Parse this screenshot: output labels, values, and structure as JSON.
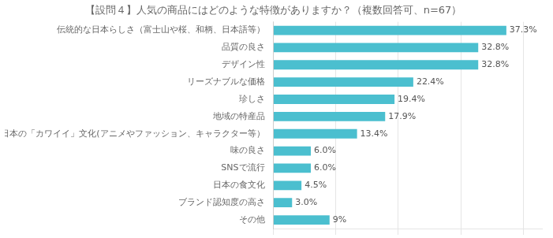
{
  "chart_data": {
    "type": "bar",
    "orientation": "horizontal",
    "title": "【設問４】人気の商品にはどのような特徴がありますか？（複数回答可、n=67）",
    "categories": [
      "その他",
      "ブランド認知度の高さ",
      "日本の食文化",
      "SNSで流行",
      "味の良さ",
      "日本の「カワイイ」文化(アニメやファッション、キャラクター等）",
      "地域の特産品",
      "珍しさ",
      "リーズナブルな価格",
      "デザイン性",
      "品質の良さ",
      "伝統的な日本らしさ（富士山や桜、和柄、日本語等）"
    ],
    "values": [
      9.0,
      3.0,
      4.5,
      6.0,
      6.0,
      13.4,
      17.9,
      19.4,
      22.4,
      32.8,
      32.8,
      37.3
    ],
    "value_labels": [
      "9%",
      "3.0%",
      "4.5%",
      "6.0%",
      "6.0%",
      "13.4%",
      "17.9%",
      "19.4%",
      "22.4%",
      "32.8%",
      "32.8%",
      "37.3%"
    ],
    "data_labels": true,
    "color": "#4BBFCF",
    "xlim": [
      0,
      43
    ],
    "xticks": [
      0,
      10,
      20,
      30,
      40
    ],
    "grid": true,
    "tick_labels": "y"
  }
}
